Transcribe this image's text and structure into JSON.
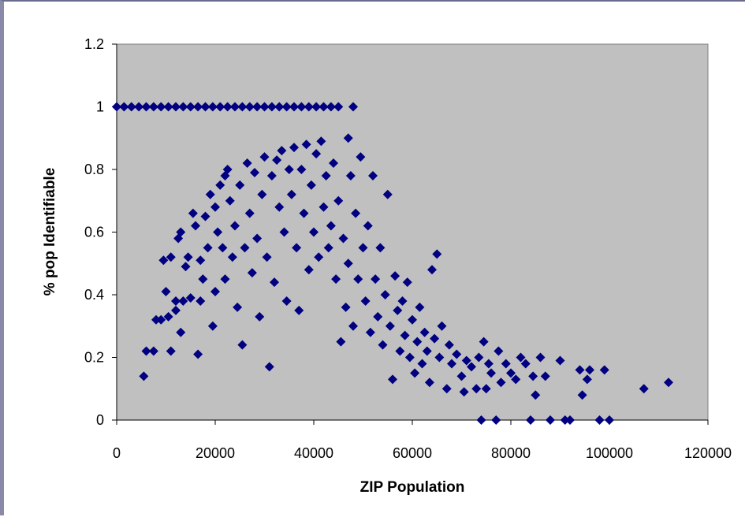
{
  "chart_data": {
    "type": "scatter",
    "title": "",
    "xlabel": "ZIP Population",
    "ylabel": "% pop Identifiable",
    "xlim": [
      0,
      120000
    ],
    "ylim": [
      0,
      1.2
    ],
    "x_ticks": [
      0,
      20000,
      40000,
      60000,
      80000,
      100000,
      120000
    ],
    "y_ticks": [
      0,
      0.2,
      0.4,
      0.6,
      0.8,
      1,
      1.2
    ],
    "x_tick_labels": [
      "0",
      "20000",
      "40000",
      "60000",
      "80000",
      "100000",
      "120000"
    ],
    "y_tick_labels": [
      "0",
      "0.2",
      "0.4",
      "0.6",
      "0.8",
      "1",
      "1.2"
    ],
    "grid": false,
    "legend": "none",
    "plot_background": "#c0c0c0",
    "marker": "diamond",
    "marker_color": "#000080",
    "series": [
      {
        "points": [
          [
            0,
            1
          ],
          [
            1500,
            1
          ],
          [
            3000,
            1
          ],
          [
            4500,
            1
          ],
          [
            6000,
            1
          ],
          [
            7500,
            1
          ],
          [
            9000,
            1
          ],
          [
            10500,
            1
          ],
          [
            12000,
            1
          ],
          [
            13500,
            1
          ],
          [
            15000,
            1
          ],
          [
            16500,
            1
          ],
          [
            18000,
            1
          ],
          [
            19500,
            1
          ],
          [
            21000,
            1
          ],
          [
            22500,
            1
          ],
          [
            24000,
            1
          ],
          [
            25500,
            1
          ],
          [
            27000,
            1
          ],
          [
            28500,
            1
          ],
          [
            30000,
            1
          ],
          [
            31500,
            1
          ],
          [
            33000,
            1
          ],
          [
            34500,
            1
          ],
          [
            36000,
            1
          ],
          [
            37500,
            1
          ],
          [
            39000,
            1
          ],
          [
            40500,
            1
          ],
          [
            42000,
            1
          ],
          [
            43500,
            1
          ],
          [
            45000,
            1
          ],
          [
            48000,
            1
          ],
          [
            5500,
            0.14
          ],
          [
            6000,
            0.22
          ],
          [
            7500,
            0.22
          ],
          [
            8000,
            0.32
          ],
          [
            9000,
            0.32
          ],
          [
            9500,
            0.51
          ],
          [
            10000,
            0.41
          ],
          [
            10500,
            0.33
          ],
          [
            11000,
            0.22
          ],
          [
            11000,
            0.52
          ],
          [
            12000,
            0.35
          ],
          [
            12000,
            0.38
          ],
          [
            12500,
            0.58
          ],
          [
            13000,
            0.6
          ],
          [
            13000,
            0.28
          ],
          [
            13500,
            0.38
          ],
          [
            14000,
            0.49
          ],
          [
            14500,
            0.52
          ],
          [
            15000,
            0.39
          ],
          [
            15500,
            0.66
          ],
          [
            16000,
            0.62
          ],
          [
            16500,
            0.21
          ],
          [
            17000,
            0.51
          ],
          [
            17000,
            0.38
          ],
          [
            17500,
            0.45
          ],
          [
            18000,
            0.65
          ],
          [
            18500,
            0.55
          ],
          [
            19000,
            0.72
          ],
          [
            19500,
            0.3
          ],
          [
            20000,
            0.68
          ],
          [
            20000,
            0.41
          ],
          [
            20500,
            0.6
          ],
          [
            21000,
            0.75
          ],
          [
            21500,
            0.55
          ],
          [
            22000,
            0.78
          ],
          [
            22000,
            0.45
          ],
          [
            22500,
            0.8
          ],
          [
            23000,
            0.7
          ],
          [
            23500,
            0.52
          ],
          [
            24000,
            0.62
          ],
          [
            24500,
            0.36
          ],
          [
            25000,
            0.75
          ],
          [
            25500,
            0.24
          ],
          [
            26000,
            0.55
          ],
          [
            26500,
            0.82
          ],
          [
            27000,
            0.66
          ],
          [
            27500,
            0.47
          ],
          [
            28000,
            0.79
          ],
          [
            28500,
            0.58
          ],
          [
            29000,
            0.33
          ],
          [
            29500,
            0.72
          ],
          [
            30000,
            0.84
          ],
          [
            30500,
            0.52
          ],
          [
            31000,
            0.17
          ],
          [
            31500,
            0.78
          ],
          [
            32000,
            0.44
          ],
          [
            32500,
            0.83
          ],
          [
            33000,
            0.68
          ],
          [
            33500,
            0.86
          ],
          [
            34000,
            0.6
          ],
          [
            34500,
            0.38
          ],
          [
            35000,
            0.8
          ],
          [
            35500,
            0.72
          ],
          [
            36000,
            0.87
          ],
          [
            36500,
            0.55
          ],
          [
            37000,
            0.35
          ],
          [
            37500,
            0.8
          ],
          [
            38000,
            0.66
          ],
          [
            38500,
            0.88
          ],
          [
            39000,
            0.48
          ],
          [
            39500,
            0.75
          ],
          [
            40000,
            0.6
          ],
          [
            40500,
            0.85
          ],
          [
            41000,
            0.52
          ],
          [
            41500,
            0.89
          ],
          [
            42000,
            0.68
          ],
          [
            42500,
            0.78
          ],
          [
            43000,
            0.55
          ],
          [
            43500,
            0.62
          ],
          [
            44000,
            0.82
          ],
          [
            44500,
            0.45
          ],
          [
            45000,
            0.7
          ],
          [
            45500,
            0.25
          ],
          [
            46000,
            0.58
          ],
          [
            46500,
            0.36
          ],
          [
            47000,
            0.9
          ],
          [
            47000,
            0.5
          ],
          [
            47500,
            0.78
          ],
          [
            48000,
            0.3
          ],
          [
            48500,
            0.66
          ],
          [
            49000,
            0.45
          ],
          [
            49500,
            0.84
          ],
          [
            50000,
            0.55
          ],
          [
            50500,
            0.38
          ],
          [
            51000,
            0.62
          ],
          [
            51500,
            0.28
          ],
          [
            52000,
            0.78
          ],
          [
            52500,
            0.45
          ],
          [
            53000,
            0.33
          ],
          [
            53500,
            0.55
          ],
          [
            54000,
            0.24
          ],
          [
            54500,
            0.4
          ],
          [
            55000,
            0.72
          ],
          [
            55500,
            0.3
          ],
          [
            56000,
            0.13
          ],
          [
            56500,
            0.46
          ],
          [
            57000,
            0.35
          ],
          [
            57500,
            0.22
          ],
          [
            58000,
            0.38
          ],
          [
            58500,
            0.27
          ],
          [
            59000,
            0.44
          ],
          [
            59500,
            0.2
          ],
          [
            60000,
            0.32
          ],
          [
            60500,
            0.15
          ],
          [
            61000,
            0.25
          ],
          [
            61500,
            0.36
          ],
          [
            62000,
            0.18
          ],
          [
            62500,
            0.28
          ],
          [
            63000,
            0.22
          ],
          [
            63500,
            0.12
          ],
          [
            64000,
            0.48
          ],
          [
            64500,
            0.26
          ],
          [
            65000,
            0.53
          ],
          [
            65500,
            0.2
          ],
          [
            66000,
            0.3
          ],
          [
            67000,
            0.1
          ],
          [
            67500,
            0.24
          ],
          [
            68000,
            0.18
          ],
          [
            69000,
            0.21
          ],
          [
            70000,
            0.14
          ],
          [
            70500,
            0.09
          ],
          [
            71000,
            0.19
          ],
          [
            72000,
            0.17
          ],
          [
            73000,
            0.1
          ],
          [
            73500,
            0.2
          ],
          [
            74000,
            0.0
          ],
          [
            74500,
            0.25
          ],
          [
            75000,
            0.1
          ],
          [
            75500,
            0.18
          ],
          [
            76000,
            0.15
          ],
          [
            77000,
            0.0
          ],
          [
            77500,
            0.22
          ],
          [
            78000,
            0.12
          ],
          [
            79000,
            0.18
          ],
          [
            80000,
            0.15
          ],
          [
            81000,
            0.13
          ],
          [
            82000,
            0.2
          ],
          [
            83000,
            0.18
          ],
          [
            84000,
            0.0
          ],
          [
            84500,
            0.14
          ],
          [
            85000,
            0.08
          ],
          [
            86000,
            0.2
          ],
          [
            87000,
            0.14
          ],
          [
            88000,
            0.0
          ],
          [
            90000,
            0.19
          ],
          [
            91000,
            0.0
          ],
          [
            92000,
            0.0
          ],
          [
            94000,
            0.16
          ],
          [
            94500,
            0.08
          ],
          [
            95500,
            0.13
          ],
          [
            96000,
            0.16
          ],
          [
            98000,
            0.0
          ],
          [
            99000,
            0.16
          ],
          [
            100000,
            0.0
          ],
          [
            107000,
            0.1
          ],
          [
            112000,
            0.12
          ]
        ]
      }
    ]
  }
}
